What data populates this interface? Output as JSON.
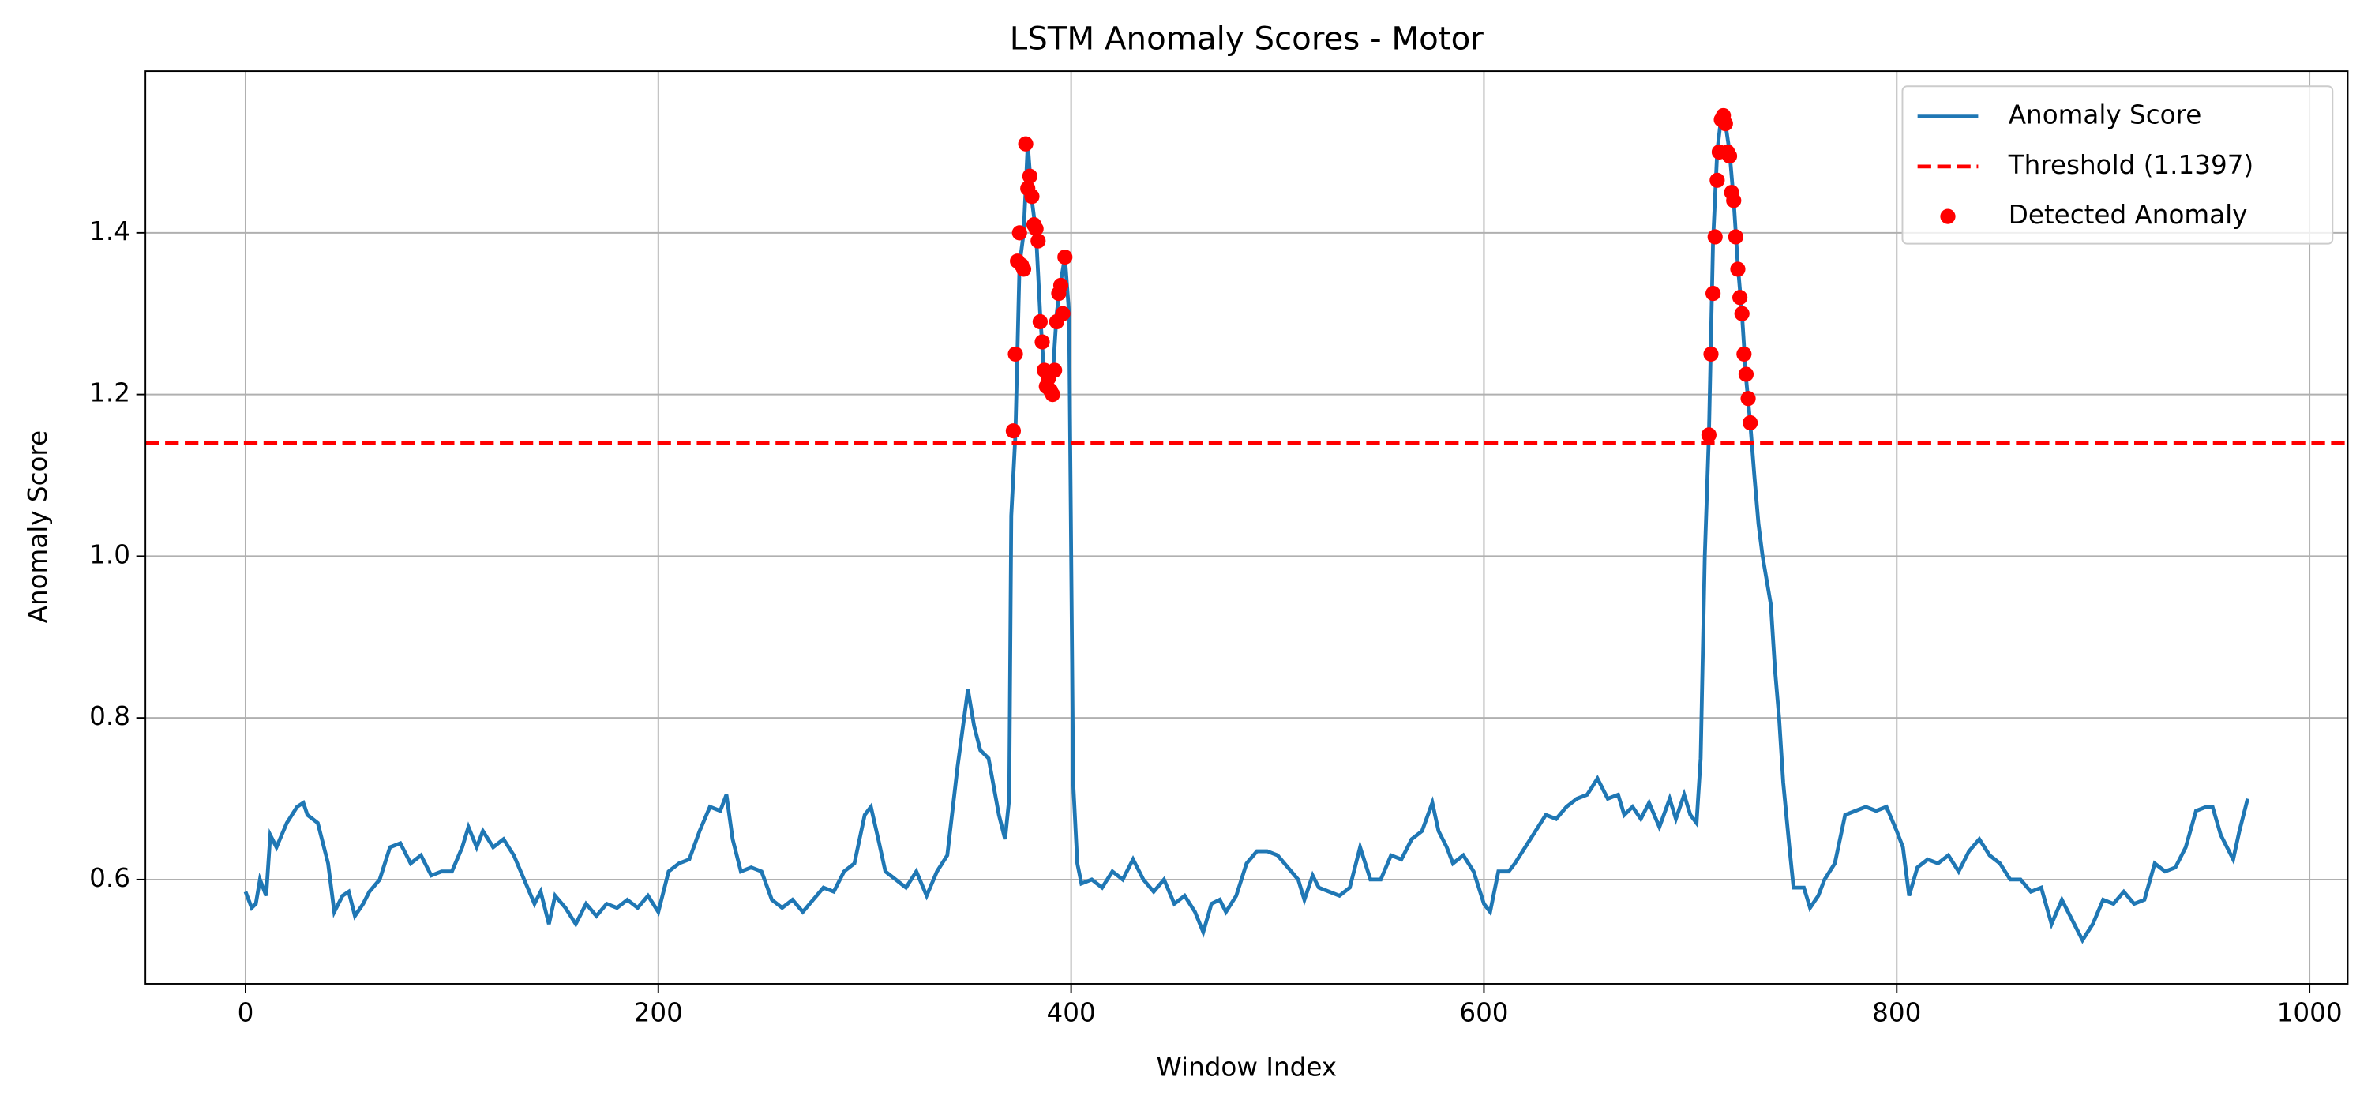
{
  "chart_data": {
    "type": "line",
    "title": "LSTM Anomaly Scores - Motor",
    "x_label": "Window Index",
    "y_label": "Anomaly Score",
    "xlim": [
      -48.5,
      1018.5
    ],
    "xticks": [
      0,
      200,
      400,
      600,
      800,
      1000
    ],
    "ylim": [
      0.471,
      1.6
    ],
    "yticks": [
      {
        "value": 0.6,
        "label": "0.6"
      },
      {
        "value": 0.8,
        "label": "0.8"
      },
      {
        "value": 1.0,
        "label": "1.0"
      },
      {
        "value": 1.2,
        "label": "1.2"
      },
      {
        "value": 1.4,
        "label": "1.4"
      }
    ],
    "grid": true,
    "legend": "upper right",
    "series": [
      {
        "name": "Anomaly Score",
        "color": "#1f77b4",
        "x": [
          0,
          3,
          5,
          7,
          10,
          12,
          15,
          20,
          25,
          28,
          30,
          35,
          38,
          40,
          43,
          47,
          50,
          53,
          57,
          60,
          65,
          70,
          75,
          80,
          85,
          90,
          95,
          100,
          105,
          108,
          112,
          115,
          120,
          125,
          130,
          135,
          140,
          143,
          147,
          150,
          155,
          160,
          165,
          170,
          175,
          180,
          185,
          190,
          195,
          200,
          205,
          210,
          215,
          220,
          225,
          230,
          233,
          236,
          240,
          245,
          250,
          255,
          260,
          265,
          270,
          275,
          280,
          285,
          290,
          295,
          300,
          303,
          307,
          310,
          315,
          320,
          325,
          330,
          335,
          340,
          345,
          350,
          353,
          356,
          360,
          365,
          368,
          370,
          371,
          373,
          375,
          377,
          379,
          381,
          383,
          385,
          387,
          389,
          391,
          393,
          395,
          397,
          399,
          401,
          403,
          405,
          410,
          415,
          420,
          425,
          430,
          435,
          440,
          445,
          450,
          455,
          460,
          464,
          468,
          472,
          475,
          480,
          485,
          490,
          495,
          500,
          505,
          510,
          513,
          517,
          520,
          525,
          530,
          535,
          540,
          545,
          550,
          555,
          560,
          565,
          570,
          575,
          578,
          582,
          585,
          590,
          595,
          600,
          603,
          607,
          612,
          615,
          620,
          625,
          630,
          635,
          640,
          645,
          650,
          655,
          660,
          665,
          668,
          672,
          676,
          680,
          685,
          690,
          693,
          697,
          700,
          703,
          705,
          707,
          709,
          711,
          713,
          715,
          717,
          719,
          721,
          723,
          725,
          727,
          729,
          731,
          733,
          735,
          737,
          739,
          741,
          743,
          745,
          748,
          750,
          755,
          758,
          762,
          765,
          770,
          775,
          780,
          785,
          790,
          795,
          800,
          803,
          806,
          810,
          815,
          820,
          825,
          830,
          835,
          840,
          845,
          850,
          855,
          860,
          865,
          870,
          875,
          880,
          885,
          890,
          895,
          900,
          905,
          910,
          915,
          920,
          925,
          930,
          935,
          940,
          945,
          950,
          953,
          957,
          960,
          963,
          966,
          970
        ],
        "values": [
          0.585,
          0.565,
          0.57,
          0.6,
          0.58,
          0.655,
          0.64,
          0.67,
          0.69,
          0.695,
          0.68,
          0.67,
          0.64,
          0.62,
          0.56,
          0.58,
          0.585,
          0.555,
          0.57,
          0.585,
          0.6,
          0.64,
          0.645,
          0.62,
          0.63,
          0.605,
          0.61,
          0.61,
          0.64,
          0.665,
          0.64,
          0.66,
          0.64,
          0.65,
          0.63,
          0.6,
          0.57,
          0.585,
          0.545,
          0.58,
          0.565,
          0.545,
          0.57,
          0.555,
          0.57,
          0.565,
          0.575,
          0.565,
          0.58,
          0.56,
          0.61,
          0.62,
          0.625,
          0.66,
          0.69,
          0.685,
          0.705,
          0.65,
          0.61,
          0.615,
          0.61,
          0.575,
          0.565,
          0.575,
          0.56,
          0.575,
          0.59,
          0.585,
          0.61,
          0.62,
          0.68,
          0.69,
          0.645,
          0.61,
          0.6,
          0.59,
          0.61,
          0.58,
          0.61,
          0.63,
          0.74,
          0.835,
          0.79,
          0.76,
          0.75,
          0.68,
          0.65,
          0.7,
          1.05,
          1.15,
          1.36,
          1.4,
          1.51,
          1.44,
          1.4,
          1.3,
          1.22,
          1.21,
          1.22,
          1.3,
          1.34,
          1.37,
          1.3,
          0.72,
          0.62,
          0.595,
          0.6,
          0.59,
          0.61,
          0.6,
          0.625,
          0.6,
          0.585,
          0.6,
          0.57,
          0.58,
          0.56,
          0.535,
          0.57,
          0.575,
          0.56,
          0.58,
          0.62,
          0.635,
          0.635,
          0.63,
          0.615,
          0.6,
          0.575,
          0.605,
          0.59,
          0.585,
          0.58,
          0.59,
          0.64,
          0.6,
          0.6,
          0.63,
          0.625,
          0.65,
          0.66,
          0.695,
          0.66,
          0.64,
          0.62,
          0.63,
          0.61,
          0.57,
          0.56,
          0.61,
          0.61,
          0.62,
          0.64,
          0.66,
          0.68,
          0.675,
          0.69,
          0.7,
          0.705,
          0.725,
          0.7,
          0.705,
          0.68,
          0.69,
          0.675,
          0.695,
          0.665,
          0.7,
          0.675,
          0.705,
          0.68,
          0.67,
          0.75,
          1.0,
          1.15,
          1.39,
          1.5,
          1.545,
          1.535,
          1.5,
          1.44,
          1.36,
          1.3,
          1.22,
          1.165,
          1.1,
          1.04,
          1.0,
          0.97,
          0.94,
          0.86,
          0.8,
          0.72,
          0.64,
          0.59,
          0.59,
          0.565,
          0.58,
          0.6,
          0.62,
          0.68,
          0.685,
          0.69,
          0.685,
          0.69,
          0.66,
          0.64,
          0.58,
          0.615,
          0.625,
          0.62,
          0.63,
          0.61,
          0.635,
          0.65,
          0.63,
          0.62,
          0.6,
          0.6,
          0.585,
          0.59,
          0.545,
          0.575,
          0.55,
          0.525,
          0.545,
          0.575,
          0.57,
          0.585,
          0.57,
          0.575,
          0.62,
          0.61,
          0.615,
          0.64,
          0.685,
          0.69,
          0.69,
          0.655,
          0.64,
          0.625,
          0.66,
          0.7
        ]
      }
    ],
    "threshold": {
      "name": "Threshold (1.1397)",
      "value": 1.1397,
      "color": "#ff0000"
    },
    "anomalies": {
      "name": "Detected Anomaly",
      "color": "#ff0000",
      "x": [
        372,
        373,
        374,
        375,
        376,
        377,
        378,
        379,
        380,
        381,
        382,
        383,
        384,
        385,
        386,
        387,
        388,
        389,
        390,
        391,
        392,
        393,
        394,
        395,
        396,
        397,
        709,
        710,
        711,
        712,
        713,
        714,
        715,
        716,
        717,
        718,
        719,
        720,
        721,
        722,
        723,
        724,
        725,
        726,
        727,
        728,
        729
      ],
      "values": [
        1.155,
        1.25,
        1.365,
        1.4,
        1.36,
        1.355,
        1.51,
        1.455,
        1.47,
        1.445,
        1.41,
        1.405,
        1.39,
        1.29,
        1.265,
        1.23,
        1.21,
        1.22,
        1.205,
        1.2,
        1.23,
        1.29,
        1.325,
        1.335,
        1.3,
        1.37,
        1.15,
        1.25,
        1.325,
        1.395,
        1.465,
        1.5,
        1.54,
        1.545,
        1.535,
        1.5,
        1.495,
        1.45,
        1.44,
        1.395,
        1.355,
        1.32,
        1.3,
        1.25,
        1.225,
        1.195,
        1.165
      ]
    }
  }
}
